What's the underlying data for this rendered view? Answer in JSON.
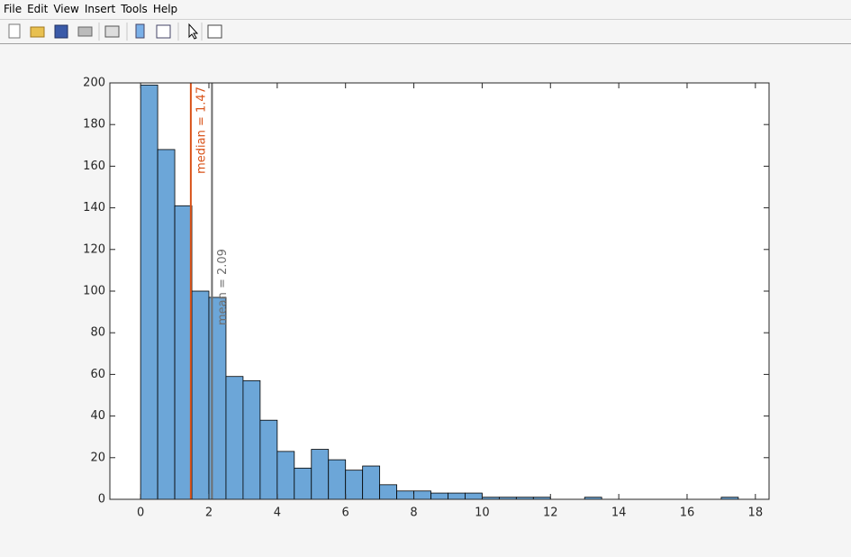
{
  "menu": [
    "File",
    "Edit",
    "View",
    "Insert",
    "Tools",
    "Help"
  ],
  "chart_data": {
    "type": "histogram",
    "bins": [
      0,
      0.5,
      1,
      1.5,
      2,
      2.5,
      3,
      3.5,
      4,
      4.5,
      5,
      5.5,
      6,
      6.5,
      7,
      7.5,
      8,
      8.5,
      9,
      9.5,
      10,
      10.5,
      11,
      11.5,
      12,
      12.5,
      13,
      13.5,
      14,
      14.5,
      15,
      15.5,
      16,
      16.5,
      17,
      17.5
    ],
    "values": [
      199,
      168,
      141,
      100,
      97,
      59,
      57,
      38,
      23,
      15,
      24,
      19,
      14,
      16,
      7,
      4,
      4,
      3,
      3,
      3,
      1,
      1,
      1,
      1,
      0,
      0,
      1,
      0,
      0,
      0,
      0,
      0,
      0,
      0,
      1
    ],
    "color": "#6ca6d8",
    "xlim": [
      -0.9,
      18.4
    ],
    "ylim": [
      0,
      200
    ],
    "xticks": [
      0,
      2,
      4,
      6,
      8,
      10,
      12,
      14,
      16,
      18
    ],
    "yticks": [
      0,
      20,
      40,
      60,
      80,
      100,
      120,
      140,
      160,
      180,
      200
    ],
    "reference_lines": [
      {
        "value": 1.47,
        "label": "median = 1.47",
        "color": "#d95319"
      },
      {
        "value": 2.09,
        "label": "mean = 2.09",
        "color": "#6e6e6e"
      }
    ]
  }
}
